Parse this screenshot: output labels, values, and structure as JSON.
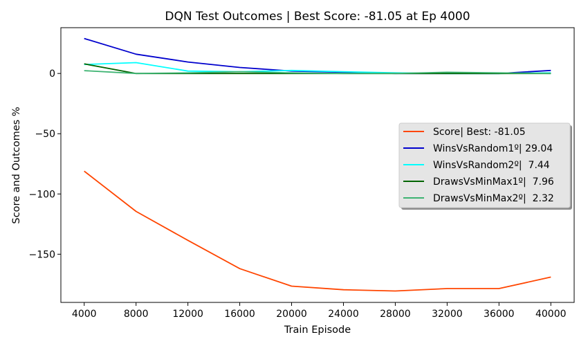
{
  "chart_data": {
    "type": "line",
    "title": "DQN Test Outcomes | Best Score: -81.05 at Ep 4000",
    "xlabel": "Train Episode",
    "ylabel": "Score and Outcomes %",
    "x": [
      4000,
      8000,
      12000,
      16000,
      20000,
      24000,
      28000,
      32000,
      36000,
      40000
    ],
    "xlim": [
      2200,
      41800
    ],
    "ylim": [
      -190,
      38
    ],
    "yticks": [
      0,
      -50,
      -100,
      -150
    ],
    "ytick_labels": [
      "0",
      "−50",
      "−100",
      "−150"
    ],
    "grid": false,
    "legend_position": "center-right",
    "series": [
      {
        "name": "Score| Best: -81.05",
        "color": "#ff4500",
        "values": [
          -81.05,
          -114.5,
          -138.5,
          -162,
          -176.5,
          -179.5,
          -180.5,
          -178.5,
          -178.5,
          -169
        ]
      },
      {
        "name": "WinsVsRandom1º| 29.04",
        "color": "#0000cd",
        "values": [
          29.04,
          16.0,
          9.5,
          5.0,
          2.0,
          1.0,
          0.0,
          0.0,
          0.0,
          2.5
        ]
      },
      {
        "name": "WinsVsRandom2º|  7.44",
        "color": "#00ffff",
        "values": [
          7.44,
          9.0,
          2.0,
          1.5,
          2.5,
          1.5,
          0.5,
          0.0,
          0.0,
          0.5
        ]
      },
      {
        "name": "DrawsVsMinMax1º|  7.96",
        "color": "#006400",
        "values": [
          7.96,
          0.0,
          0.0,
          0.0,
          0.0,
          0.0,
          0.0,
          0.0,
          0.0,
          0.0
        ]
      },
      {
        "name": "DrawsVsMinMax2º|  2.32",
        "color": "#3cb371",
        "values": [
          2.32,
          0.0,
          0.5,
          1.5,
          0.5,
          0.0,
          0.0,
          1.0,
          0.5,
          0.0
        ]
      }
    ]
  }
}
